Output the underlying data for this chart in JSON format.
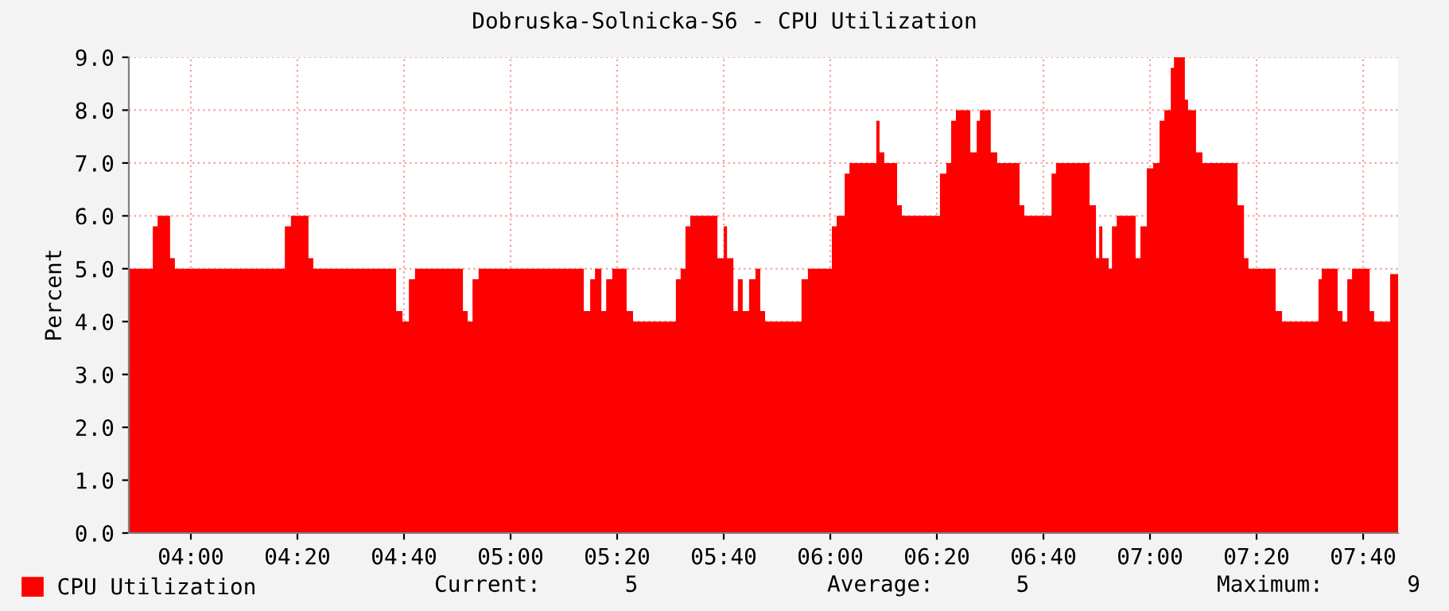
{
  "chart_data": {
    "type": "area",
    "title": "Dobruska-Solnicka-S6 - CPU Utilization",
    "ylabel": "Percent",
    "x": [
      3.806,
      3.881,
      3.896,
      3.935,
      3.95,
      4.294,
      4.313,
      4.368,
      4.383,
      4.642,
      4.662,
      4.682,
      4.701,
      4.851,
      4.866,
      4.881,
      4.9,
      5.229,
      5.249,
      5.264,
      5.284,
      5.299,
      5.318,
      5.363,
      5.383,
      5.517,
      5.532,
      5.547,
      5.562,
      5.647,
      5.667,
      5.677,
      5.697,
      5.711,
      5.726,
      5.746,
      5.766,
      5.781,
      5.796,
      5.91,
      5.93,
      6.005,
      6.02,
      6.045,
      6.06,
      6.144,
      6.154,
      6.169,
      6.209,
      6.224,
      6.343,
      6.363,
      6.378,
      6.393,
      6.438,
      6.458,
      6.468,
      6.502,
      6.522,
      6.592,
      6.607,
      6.692,
      6.706,
      6.811,
      6.831,
      6.841,
      6.851,
      6.871,
      6.881,
      6.896,
      6.955,
      6.97,
      6.99,
      7.01,
      7.03,
      7.045,
      7.065,
      7.075,
      7.109,
      7.119,
      7.144,
      7.164,
      7.274,
      7.294,
      7.308,
      7.393,
      7.413,
      7.527,
      7.537,
      7.587,
      7.602,
      7.617,
      7.632,
      7.687,
      7.701,
      7.751,
      7.776
    ],
    "series": [
      {
        "name": "CPU Utilization",
        "color": "#ff0000",
        "values": [
          5.0,
          5.8,
          6.0,
          5.2,
          5.0,
          5.8,
          6.0,
          5.2,
          5.0,
          4.2,
          4.0,
          4.8,
          5.0,
          4.2,
          4.0,
          4.8,
          5.0,
          4.2,
          4.8,
          5.0,
          4.2,
          4.8,
          5.0,
          4.2,
          4.0,
          4.8,
          5.0,
          5.8,
          6.0,
          5.2,
          5.8,
          5.2,
          4.2,
          4.8,
          4.2,
          4.8,
          5.0,
          4.2,
          4.0,
          4.8,
          5.0,
          5.8,
          6.0,
          6.8,
          7.0,
          7.8,
          7.2,
          7.0,
          6.2,
          6.0,
          6.8,
          7.0,
          7.8,
          8.0,
          7.2,
          7.8,
          8.0,
          7.2,
          7.0,
          6.2,
          6.0,
          6.8,
          7.0,
          6.2,
          5.2,
          5.8,
          5.2,
          5.0,
          5.8,
          6.0,
          5.2,
          5.8,
          6.9,
          7.0,
          7.8,
          8.0,
          8.8,
          9.0,
          8.2,
          8.0,
          7.2,
          7.0,
          6.2,
          5.2,
          5.0,
          4.2,
          4.0,
          4.8,
          5.0,
          4.2,
          4.0,
          4.8,
          5.0,
          4.2,
          4.0,
          4.9,
          4.9
        ]
      }
    ],
    "xlim": [
      3.806,
      7.776
    ],
    "xticks": [
      {
        "value": 4.0,
        "label": "04:00"
      },
      {
        "value": 4.3333,
        "label": "04:20"
      },
      {
        "value": 4.6667,
        "label": "04:40"
      },
      {
        "value": 5.0,
        "label": "05:00"
      },
      {
        "value": 5.3333,
        "label": "05:20"
      },
      {
        "value": 5.6667,
        "label": "05:40"
      },
      {
        "value": 6.0,
        "label": "06:00"
      },
      {
        "value": 6.3333,
        "label": "06:20"
      },
      {
        "value": 6.6667,
        "label": "06:40"
      },
      {
        "value": 7.0,
        "label": "07:00"
      },
      {
        "value": 7.3333,
        "label": "07:20"
      },
      {
        "value": 7.6667,
        "label": "07:40"
      }
    ],
    "ylim": [
      0,
      9
    ],
    "yticks": [
      {
        "value": 0,
        "label": "0.0"
      },
      {
        "value": 1,
        "label": "1.0"
      },
      {
        "value": 2,
        "label": "2.0"
      },
      {
        "value": 3,
        "label": "3.0"
      },
      {
        "value": 4,
        "label": "4.0"
      },
      {
        "value": 5,
        "label": "5.0"
      },
      {
        "value": 6,
        "label": "6.0"
      },
      {
        "value": 7,
        "label": "7.0"
      },
      {
        "value": 8,
        "label": "8.0"
      },
      {
        "value": 9,
        "label": "9.0"
      }
    ],
    "grid": true,
    "legend": "bottom left",
    "annotations": [
      "Current:",
      "5",
      "Average:",
      "5",
      "Maximum:",
      "9"
    ]
  }
}
